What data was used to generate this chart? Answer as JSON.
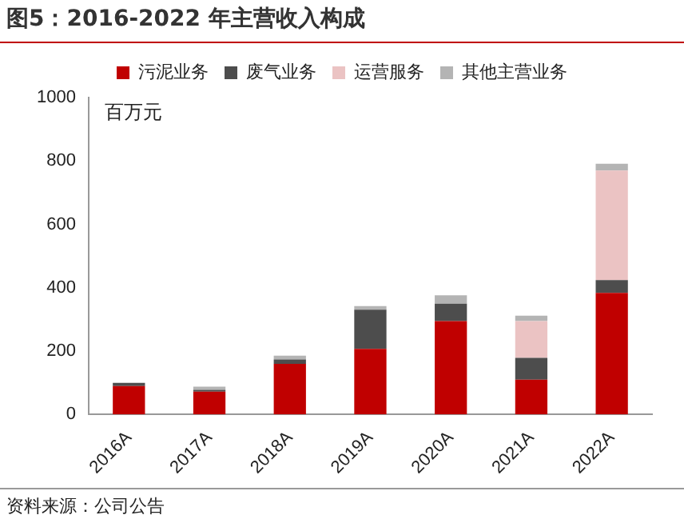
{
  "chart_data": {
    "type": "bar",
    "title": "图5：2016-2022 年主营收入构成",
    "ylabel": "百万元",
    "categories": [
      "2016A",
      "2017A",
      "2018A",
      "2019A",
      "2020A",
      "2021A",
      "2022A"
    ],
    "stacked": true,
    "series": [
      {
        "name": "污泥业务",
        "color": "#c00000",
        "values": [
          90,
          72,
          160,
          207,
          295,
          110,
          384
        ]
      },
      {
        "name": "废气业务",
        "color": "#4d4d4d",
        "values": [
          10,
          6,
          14,
          124,
          55,
          69,
          40
        ]
      },
      {
        "name": "运营服务",
        "color": "#ebc3c3",
        "values": [
          0,
          0,
          0,
          0,
          0,
          116,
          346
        ]
      },
      {
        "name": "其他主营业务",
        "color": "#b4b4b4",
        "values": [
          null,
          10,
          12,
          11,
          26,
          17,
          21
        ]
      }
    ],
    "ylim": [
      0,
      1000
    ],
    "yticks": [
      0,
      200,
      400,
      600,
      800,
      1000
    ],
    "grid": false,
    "legend": "top",
    "annotations": [
      "资料来源：公司公告"
    ]
  }
}
